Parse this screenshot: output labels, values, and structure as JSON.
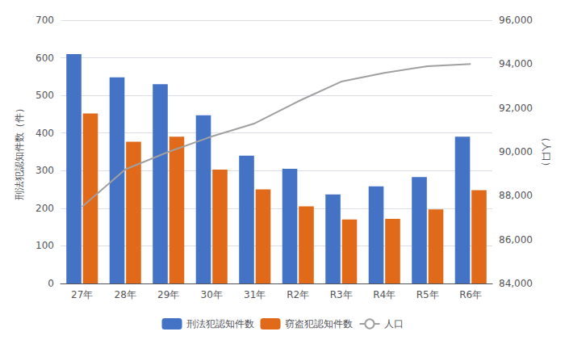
{
  "chart_data": {
    "type": "bar",
    "categories": [
      "27年",
      "28年",
      "29年",
      "30年",
      "31年",
      "R2年",
      "R3年",
      "R4年",
      "R5年",
      "R6年"
    ],
    "series": [
      {
        "name": "刑法犯認知件数",
        "color": "#4472C4",
        "values": [
          610,
          548,
          530,
          447,
          340,
          305,
          237,
          258,
          283,
          390
        ]
      },
      {
        "name": "窃盗犯認知件数",
        "color": "#E06A1A",
        "values": [
          452,
          377,
          390,
          303,
          250,
          205,
          170,
          172,
          197,
          248
        ]
      },
      {
        "name": "人口",
        "type": "line",
        "axis": "y2",
        "color": "#A0A0A0",
        "values": [
          87500,
          89200,
          90000,
          90700,
          91300,
          92300,
          93200,
          93600,
          93900,
          94000
        ]
      }
    ],
    "ylabel": "刑法犯認知件数（件）",
    "y2label": "（人口）",
    "ylim": [
      0,
      700
    ],
    "yticks": [
      0,
      100,
      200,
      300,
      400,
      500,
      600,
      700
    ],
    "y2lim": [
      84000,
      96000
    ],
    "y2ticks": [
      {
        "value": 84000,
        "label": "84,000"
      },
      {
        "value": 86000,
        "label": "86,000"
      },
      {
        "value": 88000,
        "label": "88,000"
      },
      {
        "value": 90000,
        "label": "90,000"
      },
      {
        "value": 92000,
        "label": "92,000"
      },
      {
        "value": 94000,
        "label": "94,000"
      },
      {
        "value": 96000,
        "label": "96,000"
      }
    ],
    "grid": true,
    "legend": "bottom"
  }
}
